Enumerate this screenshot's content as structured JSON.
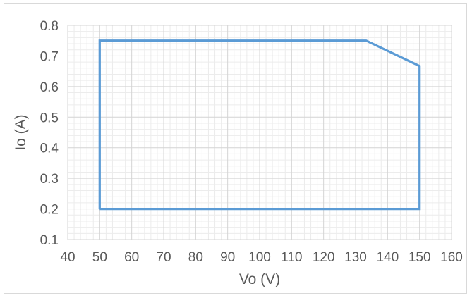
{
  "chart_data": {
    "type": "line",
    "title": "",
    "xlabel": "Vo (V)",
    "ylabel": "Io (A)",
    "xlim": [
      40,
      160
    ],
    "ylim": [
      0.1,
      0.8
    ],
    "x_ticks": [
      "40",
      "50",
      "60",
      "70",
      "80",
      "90",
      "100",
      "110",
      "120",
      "130",
      "140",
      "150",
      "160"
    ],
    "y_ticks": [
      "0.1",
      "0.2",
      "0.3",
      "0.4",
      "0.5",
      "0.6",
      "0.7",
      "0.8"
    ],
    "grid": true,
    "minor_grid": true,
    "legend": "none",
    "series": [
      {
        "color": "#5b9bd5",
        "x": [
          50,
          50,
          133.3,
          150,
          150,
          50
        ],
        "y": [
          0.2,
          0.75,
          0.75,
          0.667,
          0.2,
          0.2
        ]
      }
    ]
  }
}
